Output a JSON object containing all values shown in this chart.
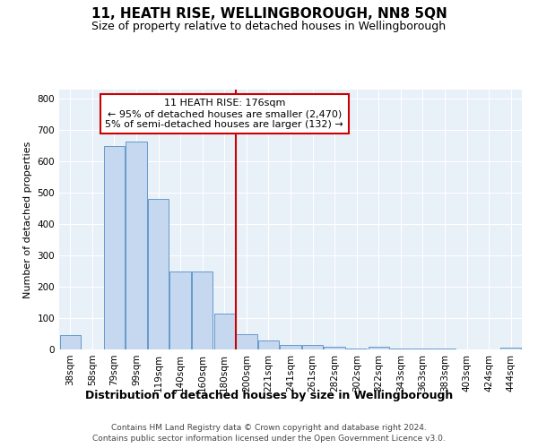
{
  "title": "11, HEATH RISE, WELLINGBOROUGH, NN8 5QN",
  "subtitle": "Size of property relative to detached houses in Wellingborough",
  "xlabel": "Distribution of detached houses by size in Wellingborough",
  "ylabel": "Number of detached properties",
  "footer_line1": "Contains HM Land Registry data © Crown copyright and database right 2024.",
  "footer_line2": "Contains public sector information licensed under the Open Government Licence v3.0.",
  "bin_labels": [
    "38sqm",
    "58sqm",
    "79sqm",
    "99sqm",
    "119sqm",
    "140sqm",
    "160sqm",
    "180sqm",
    "200sqm",
    "221sqm",
    "241sqm",
    "261sqm",
    "282sqm",
    "302sqm",
    "322sqm",
    "343sqm",
    "363sqm",
    "383sqm",
    "403sqm",
    "424sqm",
    "444sqm"
  ],
  "bar_values": [
    45,
    0,
    650,
    665,
    480,
    250,
    250,
    115,
    48,
    28,
    15,
    13,
    8,
    2,
    8,
    2,
    2,
    2,
    1,
    1,
    5
  ],
  "bar_color": "#c5d8ef",
  "bar_edge_color": "#6699cc",
  "property_line_index": 7,
  "property_line_color": "#cc0000",
  "annotation_text": "11 HEATH RISE: 176sqm\n← 95% of detached houses are smaller (2,470)\n5% of semi-detached houses are larger (132) →",
  "annotation_box_color": "#ffffff",
  "annotation_box_edge_color": "#cc0000",
  "ylim": [
    0,
    830
  ],
  "yticks": [
    0,
    100,
    200,
    300,
    400,
    500,
    600,
    700,
    800
  ],
  "background_color": "#e8f0f8",
  "grid_color": "#ffffff",
  "title_fontsize": 11,
  "subtitle_fontsize": 9,
  "xlabel_fontsize": 9,
  "ylabel_fontsize": 8,
  "tick_fontsize": 7.5,
  "annotation_fontsize": 8,
  "footer_fontsize": 6.5
}
